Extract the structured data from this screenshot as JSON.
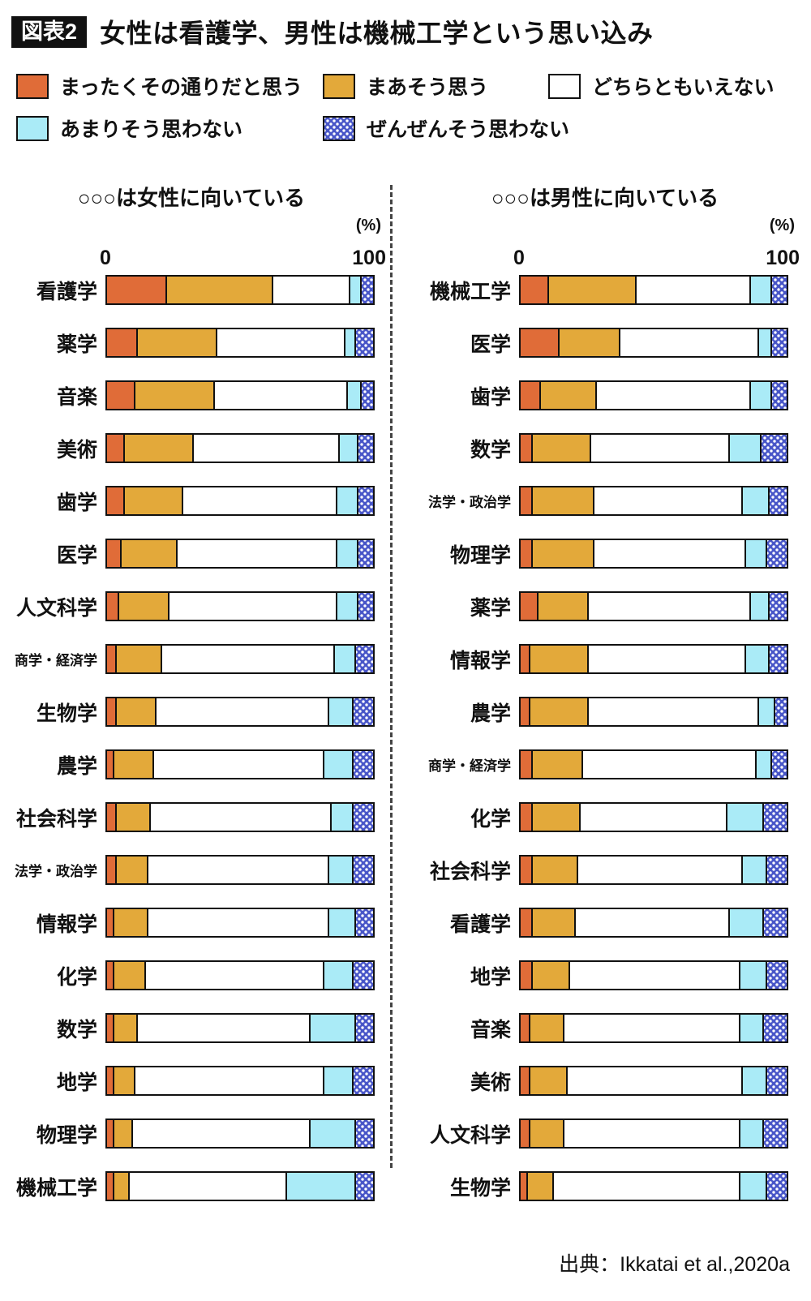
{
  "header": {
    "figure_tag": "図表2",
    "title": "女性は看護学、男性は機械工学という思い込み"
  },
  "legend": [
    {
      "label": "まったくその通りだと思う",
      "color": "#e06c38",
      "pattern": "solid"
    },
    {
      "label": "まあそう思う",
      "color": "#e3a93a",
      "pattern": "solid"
    },
    {
      "label": "どちらともいえない",
      "color": "#ffffff",
      "pattern": "solid"
    },
    {
      "label": "あまりそう思わない",
      "color": "#aaebf7",
      "pattern": "solid"
    },
    {
      "label": "ぜんぜんそう思わない",
      "color": "#4856c8",
      "pattern": "dots"
    }
  ],
  "axis": {
    "min_label": "0",
    "max_label": "100",
    "unit_label": "(%)"
  },
  "source": "出典：Ikkatai et al.,2020a",
  "chart_data": [
    {
      "type": "bar",
      "stacked": true,
      "orientation": "horizontal",
      "title": "○○○は女性に向いている",
      "xlim": [
        0,
        100
      ],
      "categories": [
        "看護学",
        "薬学",
        "音楽",
        "美術",
        "歯学",
        "医学",
        "人文科学",
        "商学・経済学",
        "生物学",
        "農学",
        "社会科学",
        "法学・政治学",
        "情報学",
        "化学",
        "数学",
        "地学",
        "物理学",
        "機械工学"
      ],
      "series": [
        {
          "name": "まったくその通りだと思う",
          "values": [
            22,
            11,
            10,
            6,
            6,
            5,
            4,
            3,
            3,
            2,
            3,
            3,
            2,
            2,
            2,
            2,
            2,
            2
          ]
        },
        {
          "name": "まあそう思う",
          "values": [
            40,
            30,
            30,
            26,
            22,
            21,
            19,
            17,
            15,
            15,
            13,
            12,
            13,
            12,
            9,
            8,
            7,
            6
          ]
        },
        {
          "name": "どちらともいえない",
          "values": [
            29,
            48,
            50,
            55,
            58,
            60,
            63,
            65,
            65,
            64,
            68,
            68,
            68,
            67,
            65,
            71,
            67,
            59
          ]
        },
        {
          "name": "あまりそう思わない",
          "values": [
            4,
            4,
            5,
            7,
            8,
            8,
            8,
            8,
            9,
            11,
            8,
            9,
            10,
            11,
            17,
            11,
            17,
            26
          ]
        },
        {
          "name": "ぜんぜんそう思わない",
          "values": [
            5,
            7,
            5,
            6,
            6,
            6,
            6,
            7,
            8,
            8,
            8,
            8,
            7,
            8,
            7,
            8,
            7,
            7
          ]
        }
      ]
    },
    {
      "type": "bar",
      "stacked": true,
      "orientation": "horizontal",
      "title": "○○○は男性に向いている",
      "xlim": [
        0,
        100
      ],
      "categories": [
        "機械工学",
        "医学",
        "歯学",
        "数学",
        "法学・政治学",
        "物理学",
        "薬学",
        "情報学",
        "農学",
        "商学・経済学",
        "化学",
        "社会科学",
        "看護学",
        "地学",
        "音楽",
        "美術",
        "人文科学",
        "生物学"
      ],
      "series": [
        {
          "name": "まったくその通りだと思う",
          "values": [
            10,
            14,
            7,
            4,
            4,
            4,
            6,
            3,
            3,
            4,
            4,
            4,
            4,
            4,
            3,
            3,
            3,
            2
          ]
        },
        {
          "name": "まあそう思う",
          "values": [
            33,
            23,
            21,
            22,
            23,
            23,
            19,
            22,
            22,
            19,
            18,
            17,
            16,
            14,
            13,
            14,
            13,
            10
          ]
        },
        {
          "name": "どちらともいえない",
          "values": [
            43,
            52,
            58,
            52,
            56,
            57,
            61,
            59,
            64,
            65,
            55,
            62,
            58,
            64,
            66,
            66,
            66,
            70
          ]
        },
        {
          "name": "あまりそう思わない",
          "values": [
            8,
            5,
            8,
            12,
            10,
            8,
            7,
            9,
            6,
            6,
            14,
            9,
            13,
            10,
            9,
            9,
            9,
            10
          ]
        },
        {
          "name": "ぜんぜんそう思わない",
          "values": [
            6,
            6,
            6,
            10,
            7,
            8,
            7,
            7,
            5,
            6,
            9,
            8,
            9,
            8,
            9,
            8,
            9,
            8
          ]
        }
      ]
    }
  ]
}
